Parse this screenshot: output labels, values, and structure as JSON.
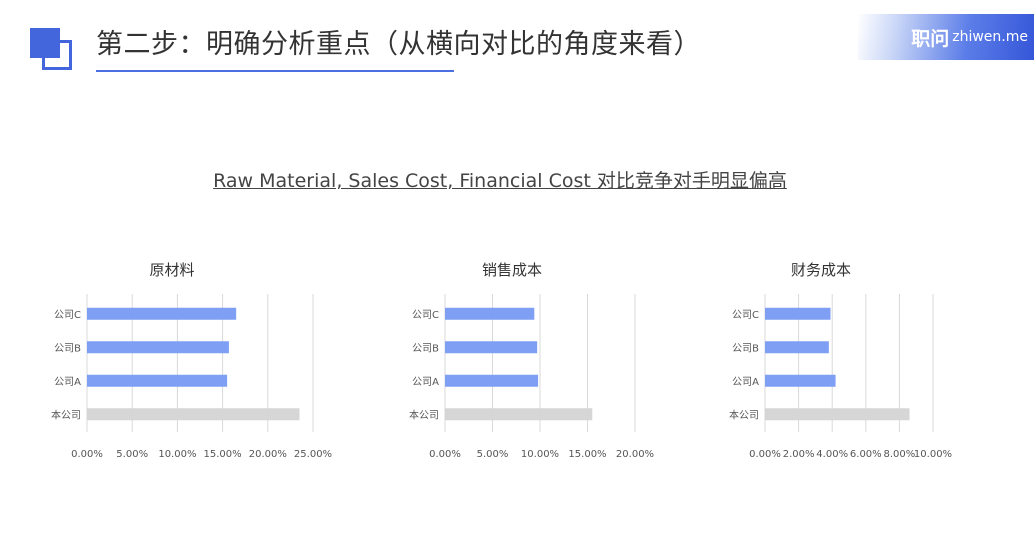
{
  "header": {
    "title": "第二步：明确分析重点（从横向对比的角度来看）",
    "brand_cn": "职问",
    "brand_en": "zhiwen.me"
  },
  "subtitle": "Raw Material, Sales Cost, Financial Cost 对比竞争对手明显偏高",
  "colors": {
    "accent": "#4466dd",
    "bar_peer": "#7f9ff5",
    "bar_self": "#d6d6d6",
    "grid": "#d9d9d9"
  },
  "chart_data": [
    {
      "type": "bar",
      "orientation": "horizontal",
      "title": "原材料",
      "categories": [
        "公司C",
        "公司B",
        "公司A",
        "本公司"
      ],
      "values": [
        0.165,
        0.157,
        0.155,
        0.235
      ],
      "xlim": [
        0,
        0.25
      ],
      "xticks": [
        0,
        0.05,
        0.1,
        0.15,
        0.2,
        0.25
      ],
      "xtick_labels": [
        "0.00%",
        "5.00%",
        "10.00%",
        "15.00%",
        "20.00%",
        "25.00%"
      ],
      "grid": true
    },
    {
      "type": "bar",
      "orientation": "horizontal",
      "title": "销售成本",
      "categories": [
        "公司C",
        "公司B",
        "公司A",
        "本公司"
      ],
      "values": [
        0.094,
        0.097,
        0.098,
        0.155
      ],
      "xlim": [
        0,
        0.2
      ],
      "xticks": [
        0,
        0.05,
        0.1,
        0.15,
        0.2
      ],
      "xtick_labels": [
        "0.00%",
        "5.00%",
        "10.00%",
        "15.00%",
        "20.00%"
      ],
      "grid": true
    },
    {
      "type": "bar",
      "orientation": "horizontal",
      "title": "财务成本",
      "categories": [
        "公司C",
        "公司B",
        "公司A",
        "本公司"
      ],
      "values": [
        0.039,
        0.038,
        0.042,
        0.086
      ],
      "xlim": [
        0,
        0.1
      ],
      "xticks": [
        0,
        0.02,
        0.04,
        0.06,
        0.08,
        0.1
      ],
      "xtick_labels": [
        "0.00%",
        "2.00%",
        "4.00%",
        "6.00%",
        "8.00%",
        "10.00%"
      ],
      "grid": true
    }
  ]
}
